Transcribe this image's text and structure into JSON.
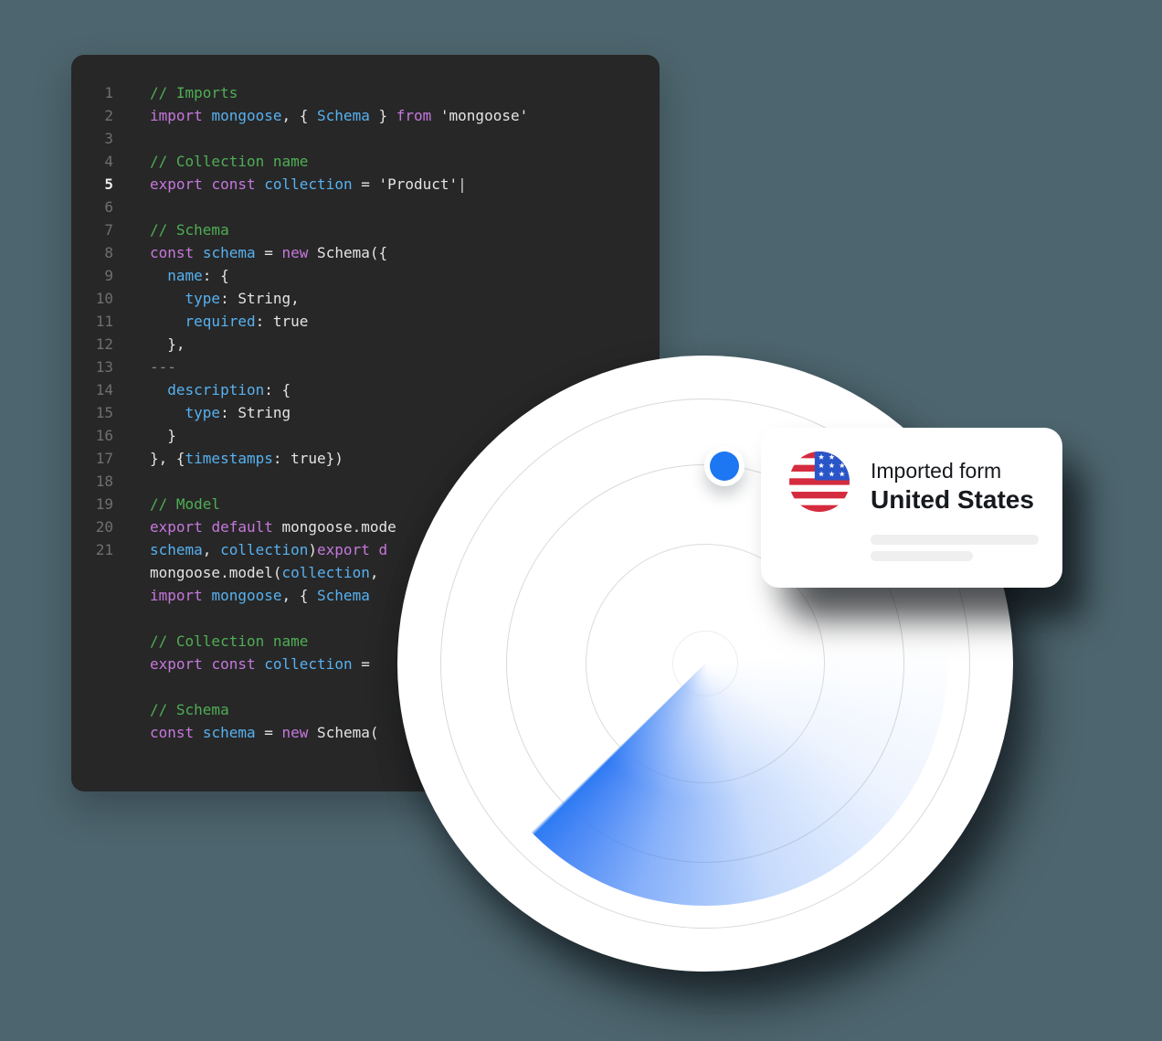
{
  "page": {
    "background": "#4d656e"
  },
  "code_editor": {
    "background": "#272727",
    "active_line": "5",
    "colors": {
      "comment": "#4fae54",
      "keyword": "#c678dd",
      "identifier": "#57b1f0",
      "plain": "#e4e4e4",
      "muted": "#8a8a8a",
      "cursor": "#d0d0d0",
      "line_number": "#6f6f6f",
      "active_line_number": "#ececec"
    },
    "lines": [
      {
        "num": "1",
        "tokens": [
          [
            "comment",
            "// Imports"
          ]
        ]
      },
      {
        "num": "2",
        "tokens": [
          [
            "keyword",
            "import"
          ],
          [
            "plain",
            " "
          ],
          [
            "identifier",
            "mongoose"
          ],
          [
            "plain",
            ", { "
          ],
          [
            "identifier",
            "Schema"
          ],
          [
            "plain",
            " } "
          ],
          [
            "keyword",
            "from"
          ],
          [
            "plain",
            " 'mongoose'"
          ]
        ]
      },
      {
        "num": "3",
        "tokens": []
      },
      {
        "num": "4",
        "tokens": [
          [
            "comment",
            "// Collection name"
          ]
        ]
      },
      {
        "num": "5",
        "tokens": [
          [
            "keyword",
            "export"
          ],
          [
            "plain",
            " "
          ],
          [
            "keyword",
            "const"
          ],
          [
            "plain",
            " "
          ],
          [
            "identifier",
            "collection"
          ],
          [
            "plain",
            " = 'Product'"
          ],
          [
            "cursor",
            "|"
          ]
        ]
      },
      {
        "num": "6",
        "tokens": []
      },
      {
        "num": "7",
        "tokens": [
          [
            "comment",
            "// Schema"
          ]
        ]
      },
      {
        "num": "8",
        "tokens": [
          [
            "keyword",
            "const"
          ],
          [
            "plain",
            " "
          ],
          [
            "identifier",
            "schema"
          ],
          [
            "plain",
            " = "
          ],
          [
            "keyword",
            "new"
          ],
          [
            "plain",
            " Schema({"
          ]
        ]
      },
      {
        "num": "9",
        "tokens": [
          [
            "plain",
            "  "
          ],
          [
            "identifier",
            "name"
          ],
          [
            "plain",
            ": {"
          ]
        ]
      },
      {
        "num": "10",
        "tokens": [
          [
            "plain",
            "    "
          ],
          [
            "identifier",
            "type"
          ],
          [
            "plain",
            ": String,"
          ]
        ]
      },
      {
        "num": "11",
        "tokens": [
          [
            "plain",
            "    "
          ],
          [
            "identifier",
            "required"
          ],
          [
            "plain",
            ": true"
          ]
        ]
      },
      {
        "num": "12",
        "tokens": [
          [
            "plain",
            "  },"
          ]
        ]
      },
      {
        "num": "13",
        "tokens": [
          [
            "muted",
            "---"
          ]
        ]
      },
      {
        "num": "14",
        "tokens": [
          [
            "plain",
            "  "
          ],
          [
            "identifier",
            "description"
          ],
          [
            "plain",
            ": {"
          ]
        ]
      },
      {
        "num": "15",
        "tokens": [
          [
            "plain",
            "    "
          ],
          [
            "identifier",
            "type"
          ],
          [
            "plain",
            ": String"
          ]
        ]
      },
      {
        "num": "16",
        "tokens": [
          [
            "plain",
            "  }"
          ]
        ]
      },
      {
        "num": "17",
        "tokens": [
          [
            "plain",
            "}, {"
          ],
          [
            "identifier",
            "timestamps"
          ],
          [
            "plain",
            ": true})"
          ]
        ]
      },
      {
        "num": "18",
        "tokens": []
      },
      {
        "num": "19",
        "tokens": [
          [
            "comment",
            "// Model"
          ]
        ]
      },
      {
        "num": "20",
        "tokens": [
          [
            "keyword",
            "export"
          ],
          [
            "plain",
            " "
          ],
          [
            "keyword",
            "default"
          ],
          [
            "plain",
            " mongoose.mode"
          ]
        ]
      },
      {
        "num": "21",
        "tokens": [
          [
            "identifier",
            "schema"
          ],
          [
            "plain",
            ", "
          ],
          [
            "identifier",
            "collection"
          ],
          [
            "plain",
            ")"
          ],
          [
            "keyword",
            "export d"
          ]
        ]
      },
      {
        "num": "",
        "tokens": [
          [
            "plain",
            "mongoose.model("
          ],
          [
            "identifier",
            "collection"
          ],
          [
            "plain",
            ","
          ]
        ]
      },
      {
        "num": "",
        "tokens": [
          [
            "keyword",
            "import"
          ],
          [
            "plain",
            " "
          ],
          [
            "identifier",
            "mongoose"
          ],
          [
            "plain",
            ", { "
          ],
          [
            "identifier",
            "Schema"
          ]
        ]
      },
      {
        "num": "",
        "tokens": []
      },
      {
        "num": "",
        "tokens": [
          [
            "comment",
            "// Collection name"
          ]
        ]
      },
      {
        "num": "",
        "tokens": [
          [
            "keyword",
            "export"
          ],
          [
            "plain",
            " "
          ],
          [
            "keyword",
            "const"
          ],
          [
            "plain",
            " "
          ],
          [
            "identifier",
            "collection"
          ],
          [
            "plain",
            " ="
          ]
        ]
      },
      {
        "num": "",
        "tokens": []
      },
      {
        "num": "",
        "tokens": [
          [
            "comment",
            "// Schema"
          ]
        ]
      },
      {
        "num": "",
        "tokens": [
          [
            "keyword",
            "const"
          ],
          [
            "plain",
            " "
          ],
          [
            "identifier",
            "schema"
          ],
          [
            "plain",
            " = "
          ],
          [
            "keyword",
            "new"
          ],
          [
            "plain",
            " Schema("
          ]
        ]
      }
    ]
  },
  "radar": {
    "background": "#ffffff",
    "ring_color": "#d9d9d9",
    "ring_radii": [
      35,
      130,
      217,
      289
    ],
    "outer_radius": 337,
    "sweep_color": "#2e7bf3",
    "sweep_edge_angle_deg": 226,
    "sweep_span_deg": 142,
    "sweep_radius": 265,
    "blip_color": "#1d76f2"
  },
  "card": {
    "label": "Imported form",
    "country": "United States",
    "flag_icon": "us-flag",
    "flag_colors": {
      "red": "#d52b3e",
      "blue": "#2a55c8",
      "white": "#ffffff"
    },
    "placeholder_bar_widths": [
      184,
      112
    ]
  }
}
